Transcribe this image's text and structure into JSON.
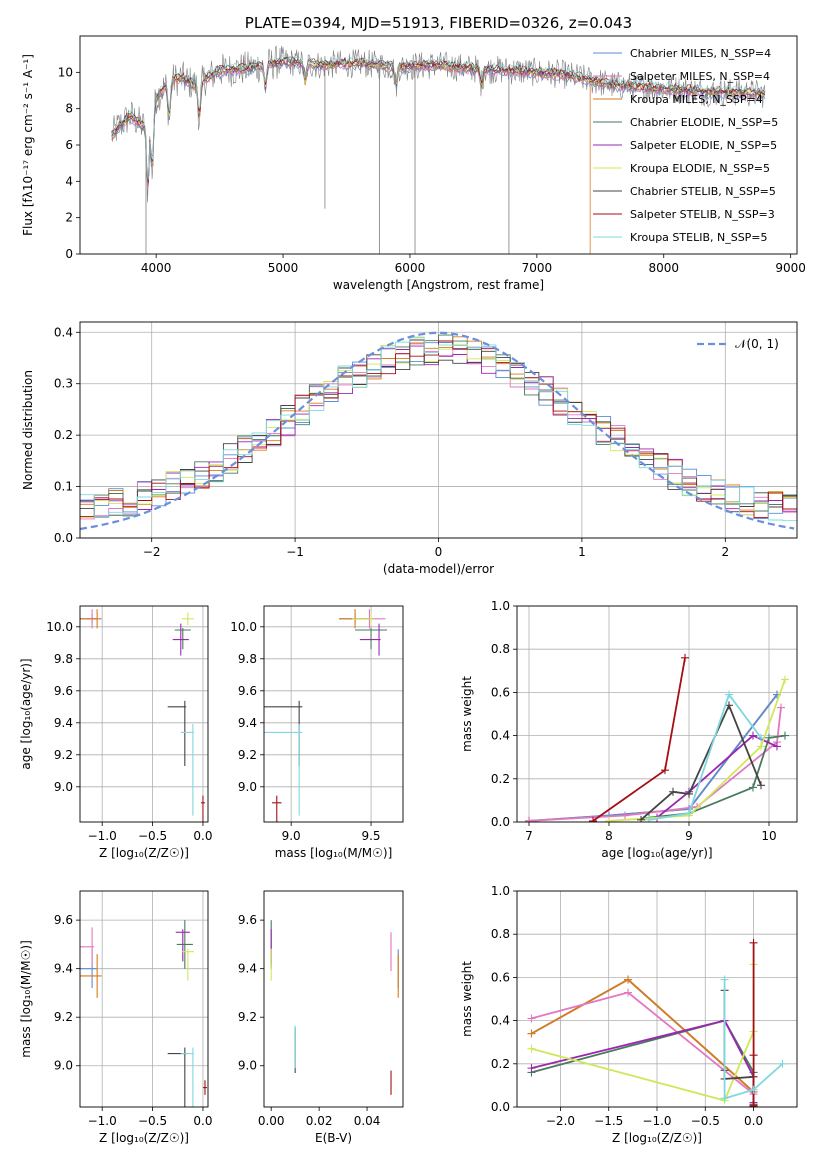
{
  "colors": {
    "cmiles": "#5b8bd6",
    "smiles": "#e377c2",
    "kmiles": "#d97a1c",
    "celodie": "#4a7a5e",
    "selodie": "#9b27b0",
    "kelodie": "#cfe85a",
    "cstelib": "#444444",
    "sstelib": "#a50f15",
    "kstelib": "#7fd8df",
    "gauss": "#6a8fdd",
    "grid": "#b0b0b0"
  },
  "chart_data": [
    {
      "id": "spectrum",
      "type": "line",
      "title": "PLATE=0394, MJD=51913, FIBERID=0326, z=0.043",
      "xlabel": "wavelength [Angstrom, rest frame]",
      "ylabel": "Flux [fλ10⁻¹⁷ erg cm⁻² s⁻¹ A⁻¹]",
      "xlim": [
        3400,
        9050
      ],
      "ylim": [
        0,
        12
      ],
      "xticks": [
        "4000",
        "5000",
        "6000",
        "7000",
        "8000",
        "9000"
      ],
      "yticks": [
        "0",
        "2",
        "4",
        "6",
        "8",
        "10"
      ],
      "legend_placement": "upper right",
      "grid": false,
      "legend": [
        "Chabrier MILES, N_SSP=4",
        "Salpeter MILES, N_SSP=4",
        "Kroupa MILES, N_SSP=4",
        "Chabrier ELODIE, N_SSP=5",
        "Salpeter ELODIE, N_SSP=5",
        "Kroupa ELODIE, N_SSP=5",
        "Chabrier STELIB, N_SSP=5",
        "Salpeter STELIB, N_SSP=3",
        "Kroupa STELIB, N_SSP=5"
      ],
      "continuum": {
        "x": [
          3650,
          3700,
          3800,
          3900,
          4000,
          4100,
          4200,
          4300,
          4500,
          4700,
          5000,
          5300,
          5600,
          5900,
          6200,
          6500,
          6800,
          7000,
          7200,
          7400,
          7600,
          7800,
          8000,
          8200,
          8400,
          8600,
          8800
        ],
        "y": [
          6.5,
          7.0,
          7.6,
          7.0,
          8.6,
          9.5,
          9.7,
          9.3,
          10.1,
          10.2,
          10.6,
          10.4,
          10.5,
          10.3,
          10.4,
          10.2,
          10.1,
          10.0,
          9.9,
          9.6,
          9.3,
          9.2,
          9.1,
          9.0,
          8.9,
          8.9,
          8.8
        ]
      }
    },
    {
      "id": "residuals",
      "type": "bar",
      "xlabel": "(data-model)/error",
      "ylabel": "Normed distribution",
      "xlim": [
        -2.5,
        2.5
      ],
      "ylim": [
        0,
        0.42
      ],
      "xticks": [
        "−2",
        "−1",
        "0",
        "1",
        "2"
      ],
      "yticks": [
        "0.0",
        "0.1",
        "0.2",
        "0.3",
        "0.4"
      ],
      "grid": true,
      "legend_placement": "upper right",
      "legend": [
        "𝒩(0, 1)"
      ]
    },
    {
      "id": "age_Z",
      "type": "scatter",
      "xlabel": "Z [log₁₀(Z/Z☉)]",
      "ylabel": "age  [log₁₀(age/yr)]",
      "xlim": [
        -1.22,
        0.05
      ],
      "ylim": [
        8.78,
        10.13
      ],
      "xticks": [
        "−1.0",
        "−0.5",
        "0.0"
      ],
      "yticks": [
        "9.0",
        "9.2",
        "9.4",
        "9.6",
        "9.8",
        "10.0"
      ],
      "grid": true,
      "points": [
        {
          "c": "cmiles",
          "x": -1.1,
          "xe": 0.6,
          "y": 10.05,
          "ye": 0.03
        },
        {
          "c": "smiles",
          "x": -1.1,
          "xe": 0.05,
          "y": 10.05,
          "ye": 0.06
        },
        {
          "c": "kmiles",
          "x": -1.05,
          "xe": 0.55,
          "y": 10.05,
          "ye": 0.06
        },
        {
          "c": "celodie",
          "x": -0.2,
          "xe": 0.08,
          "y": 9.98,
          "ye": 0.12
        },
        {
          "c": "selodie",
          "x": -0.22,
          "xe": 0.08,
          "y": 9.92,
          "ye": 0.1
        },
        {
          "c": "kelodie",
          "x": -0.15,
          "xe": 0.06,
          "y": 10.05,
          "ye": 0.04
        },
        {
          "c": "cstelib",
          "x": -0.18,
          "xe": 0.17,
          "y": 9.5,
          "ye": 0.37
        },
        {
          "c": "sstelib",
          "x": 0.0,
          "xe": 0.02,
          "y": 8.9,
          "ye": 0.45
        },
        {
          "c": "kstelib",
          "x": -0.1,
          "xe": 0.12,
          "y": 9.34,
          "ye": 0.52
        }
      ]
    },
    {
      "id": "age_mass",
      "type": "scatter",
      "xlabel": "mass [log₁₀(M/M☉)]",
      "xlim": [
        8.83,
        9.7
      ],
      "ylim": [
        8.78,
        10.13
      ],
      "xticks": [
        "9.0",
        "9.5"
      ],
      "yticks": [
        "9.0",
        "9.2",
        "9.4",
        "9.6",
        "9.8",
        "10.0"
      ],
      "grid": true,
      "points": [
        {
          "c": "cmiles",
          "x": 9.4,
          "xe": 0.1,
          "y": 10.05,
          "ye": 0.03
        },
        {
          "c": "smiles",
          "x": 9.49,
          "xe": 0.1,
          "y": 10.05,
          "ye": 0.06
        },
        {
          "c": "kmiles",
          "x": 9.4,
          "xe": 0.1,
          "y": 10.05,
          "ye": 0.06
        },
        {
          "c": "celodie",
          "x": 9.5,
          "xe": 0.1,
          "y": 9.98,
          "ye": 0.12
        },
        {
          "c": "selodie",
          "x": 9.55,
          "xe": 0.12,
          "y": 9.92,
          "ye": 0.1
        },
        {
          "c": "kelodie",
          "x": 9.5,
          "xe": 0.12,
          "y": 10.05,
          "ye": 0.04
        },
        {
          "c": "cstelib",
          "x": 9.05,
          "xe": 0.25,
          "y": 9.5,
          "ye": 0.37
        },
        {
          "c": "sstelib",
          "x": 8.91,
          "xe": 0.03,
          "y": 8.9,
          "ye": 0.45
        },
        {
          "c": "kstelib",
          "x": 9.05,
          "xe": 0.25,
          "y": 9.34,
          "ye": 0.52
        }
      ]
    },
    {
      "id": "mw_age",
      "type": "line",
      "xlabel": "age  [log₁₀(age/yr)]",
      "ylabel": "mass weight",
      "xlim": [
        6.85,
        10.35
      ],
      "ylim": [
        0,
        1.0
      ],
      "xticks": [
        "7",
        "8",
        "9",
        "10"
      ],
      "yticks": [
        "0.0",
        "0.2",
        "0.4",
        "0.6",
        "0.8",
        "1.0"
      ],
      "grid": true,
      "series": [
        {
          "c": "kmiles",
          "x": [
            7.0,
            8.0,
            9.0,
            10.1
          ],
          "y": [
            0.005,
            0.03,
            0.06,
            0.59
          ]
        },
        {
          "c": "cmiles",
          "x": [
            7.0,
            8.0,
            9.0,
            10.1
          ],
          "y": [
            0.005,
            0.03,
            0.06,
            0.59
          ]
        },
        {
          "c": "smiles",
          "x": [
            7.0,
            8.2,
            9.1,
            10.1,
            10.15
          ],
          "y": [
            0.005,
            0.03,
            0.07,
            0.37,
            0.53
          ]
        },
        {
          "c": "celodie",
          "x": [
            8.5,
            9.0,
            9.8,
            10.0,
            10.2
          ],
          "y": [
            0.02,
            0.04,
            0.16,
            0.39,
            0.4
          ]
        },
        {
          "c": "selodie",
          "x": [
            8.6,
            9.0,
            9.8,
            10.1
          ],
          "y": [
            0.02,
            0.14,
            0.4,
            0.35
          ]
        },
        {
          "c": "kelodie",
          "x": [
            8.0,
            9.0,
            9.9,
            10.2
          ],
          "y": [
            0.005,
            0.03,
            0.35,
            0.66
          ]
        },
        {
          "c": "cstelib",
          "x": [
            8.4,
            8.8,
            9.0,
            9.5,
            9.9
          ],
          "y": [
            0.01,
            0.14,
            0.13,
            0.54,
            0.17
          ]
        },
        {
          "c": "sstelib",
          "x": [
            7.8,
            8.7,
            8.95
          ],
          "y": [
            0.005,
            0.24,
            0.76
          ]
        },
        {
          "c": "kstelib",
          "x": [
            8.5,
            9.0,
            9.5,
            9.9
          ],
          "y": [
            0.01,
            0.04,
            0.59,
            0.39
          ]
        }
      ]
    },
    {
      "id": "mass_Z",
      "type": "scatter",
      "xlabel": "Z [log₁₀(Z/Z☉)]",
      "ylabel": "mass [log₁₀(M/M☉)]",
      "xlim": [
        -1.22,
        0.05
      ],
      "ylim": [
        8.83,
        9.72
      ],
      "xticks": [
        "−1.0",
        "−0.5",
        "0.0"
      ],
      "yticks": [
        "9.0",
        "9.2",
        "9.4",
        "9.6"
      ],
      "grid": true,
      "points": [
        {
          "c": "cmiles",
          "x": -1.1,
          "xe": 0.6,
          "y": 9.4,
          "ye": 0.08
        },
        {
          "c": "smiles",
          "x": -1.1,
          "xe": 0.25,
          "y": 9.49,
          "ye": 0.08
        },
        {
          "c": "kmiles",
          "x": -1.05,
          "xe": 0.55,
          "y": 9.37,
          "ye": 0.09
        },
        {
          "c": "celodie",
          "x": -0.18,
          "xe": 0.08,
          "y": 9.5,
          "ye": 0.1
        },
        {
          "c": "selodie",
          "x": -0.2,
          "xe": 0.07,
          "y": 9.55,
          "ye": 0.12
        },
        {
          "c": "kelodie",
          "x": -0.15,
          "xe": 0.06,
          "y": 9.47,
          "ye": 0.12
        },
        {
          "c": "cstelib",
          "x": -0.18,
          "xe": 0.17,
          "y": 9.05,
          "ye": 0.25
        },
        {
          "c": "sstelib",
          "x": 0.02,
          "xe": 0.02,
          "y": 8.91,
          "ye": 0.03
        },
        {
          "c": "kstelib",
          "x": -0.1,
          "xe": 0.12,
          "y": 9.05,
          "ye": 0.25
        }
      ]
    },
    {
      "id": "mass_ebv",
      "type": "scatter",
      "xlabel": "E(B-V)",
      "xlim": [
        -0.003,
        0.055
      ],
      "ylim": [
        8.83,
        9.72
      ],
      "xticks": [
        "0.00",
        "0.02",
        "0.04"
      ],
      "yticks": [
        "9.0",
        "9.2",
        "9.4",
        "9.6"
      ],
      "grid": false,
      "points": [
        {
          "c": "cmiles",
          "x": 0.053,
          "xe": 0,
          "y": 9.4,
          "ye": 0.08
        },
        {
          "c": "smiles",
          "x": 0.05,
          "xe": 0,
          "y": 9.47,
          "ye": 0.08
        },
        {
          "c": "kmiles",
          "x": 0.053,
          "xe": 0,
          "y": 9.37,
          "ye": 0.09
        },
        {
          "c": "celodie",
          "x": 0.0,
          "xe": 0,
          "y": 9.5,
          "ye": 0.1
        },
        {
          "c": "selodie",
          "x": 0.0,
          "xe": 0,
          "y": 9.55,
          "ye": 0.13
        },
        {
          "c": "kelodie",
          "x": 0.0,
          "xe": 0,
          "y": 9.47,
          "ye": 0.12
        },
        {
          "c": "cstelib",
          "x": 0.01,
          "xe": 0,
          "y": 9.14,
          "ye": 0.17
        },
        {
          "c": "sstelib",
          "x": 0.05,
          "xe": 0,
          "y": 8.93,
          "ye": 0.05
        },
        {
          "c": "kstelib",
          "x": 0.01,
          "xe": 0,
          "y": 9.15,
          "ye": 0.16
        }
      ]
    },
    {
      "id": "mw_Z",
      "type": "line",
      "xlabel": "Z [log₁₀(Z/Z☉)]",
      "ylabel": "mass weight",
      "xlim": [
        -2.45,
        0.45
      ],
      "ylim": [
        0,
        1.0
      ],
      "xticks": [
        "−2.0",
        "−1.5",
        "−1.0",
        "−0.5",
        "0.0"
      ],
      "yticks": [
        "0.0",
        "0.2",
        "0.4",
        "0.6",
        "0.8",
        "1.0"
      ],
      "grid": true,
      "series": [
        {
          "c": "cmiles",
          "x": [
            -2.3,
            -1.3,
            0.0,
            0.0
          ],
          "y": [
            0.34,
            0.59,
            0.07,
            0.005
          ]
        },
        {
          "c": "kmiles",
          "x": [
            -2.3,
            -1.3,
            0.0,
            0.0
          ],
          "y": [
            0.34,
            0.59,
            0.07,
            0.005
          ]
        },
        {
          "c": "smiles",
          "x": [
            -2.3,
            -1.3,
            0.0,
            0.0
          ],
          "y": [
            0.41,
            0.53,
            0.06,
            0.01
          ]
        },
        {
          "c": "celodie",
          "x": [
            -2.3,
            -0.3,
            0.0,
            0.0
          ],
          "y": [
            0.16,
            0.4,
            0.16,
            0.02
          ]
        },
        {
          "c": "selodie",
          "x": [
            -2.3,
            -0.3,
            0.0,
            0.0
          ],
          "y": [
            0.18,
            0.4,
            0.14,
            0.02
          ]
        },
        {
          "c": "kelodie",
          "x": [
            -2.3,
            -0.3,
            0.0,
            0.0
          ],
          "y": [
            0.27,
            0.03,
            0.35,
            0.66
          ]
        },
        {
          "c": "cstelib",
          "x": [
            -0.3,
            -0.3,
            -0.3,
            0.0,
            0.0
          ],
          "y": [
            0.54,
            0.17,
            0.13,
            0.14,
            0.01
          ]
        },
        {
          "c": "sstelib",
          "x": [
            0.0,
            0.0,
            0.0
          ],
          "y": [
            0.76,
            0.24,
            0.005
          ]
        },
        {
          "c": "kstelib",
          "x": [
            -0.3,
            -0.3,
            0.0,
            0.3
          ],
          "y": [
            0.59,
            0.04,
            0.08,
            0.2
          ]
        }
      ]
    }
  ]
}
